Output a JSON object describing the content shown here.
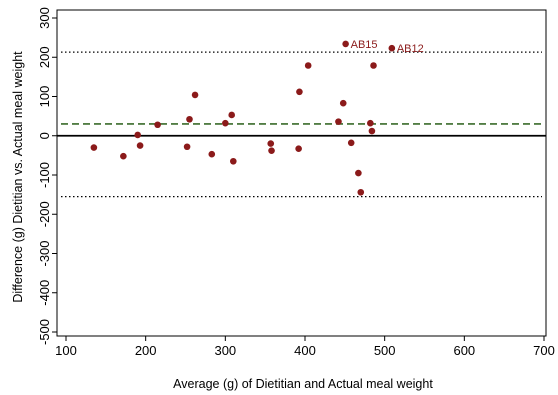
{
  "chart_data": {
    "type": "scatter",
    "title": "",
    "xlabel": "Average (g) of Dietitian and Actual meal weight",
    "ylabel": "Difference (g) Dietitian vs. Actual meal weight",
    "xlim": [
      100,
      700
    ],
    "ylim": [
      -500,
      300
    ],
    "xticks": [
      100,
      200,
      300,
      400,
      500,
      600,
      700
    ],
    "yticks": [
      -500,
      -400,
      -300,
      -200,
      -100,
      0,
      100,
      200,
      300
    ],
    "grid": false,
    "point_color": "#8b1a1a",
    "series": [
      {
        "points": [
          {
            "x": 135,
            "y": -30
          },
          {
            "x": 172,
            "y": -52
          },
          {
            "x": 190,
            "y": 2
          },
          {
            "x": 193,
            "y": -25
          },
          {
            "x": 215,
            "y": 28
          },
          {
            "x": 252,
            "y": -28
          },
          {
            "x": 255,
            "y": 42
          },
          {
            "x": 262,
            "y": 104
          },
          {
            "x": 283,
            "y": -47
          },
          {
            "x": 300,
            "y": 32
          },
          {
            "x": 308,
            "y": 53
          },
          {
            "x": 310,
            "y": -65
          },
          {
            "x": 357,
            "y": -20
          },
          {
            "x": 358,
            "y": -38
          },
          {
            "x": 392,
            "y": -33
          },
          {
            "x": 393,
            "y": 112
          },
          {
            "x": 404,
            "y": 179
          },
          {
            "x": 442,
            "y": 36
          },
          {
            "x": 448,
            "y": 83
          },
          {
            "x": 451,
            "y": 234
          },
          {
            "x": 458,
            "y": -18
          },
          {
            "x": 467,
            "y": -95
          },
          {
            "x": 470,
            "y": -144
          },
          {
            "x": 482,
            "y": 32
          },
          {
            "x": 484,
            "y": 12
          },
          {
            "x": 486,
            "y": 179
          },
          {
            "x": 509,
            "y": 223
          }
        ]
      }
    ],
    "reference_lines": [
      {
        "y": 0,
        "style": "solid",
        "color": "#000000"
      },
      {
        "y": 30,
        "style": "dashed",
        "color": "#3a6b2a"
      },
      {
        "y": 213,
        "style": "dotted",
        "color": "#000000"
      },
      {
        "y": -155,
        "style": "dotted",
        "color": "#000000"
      }
    ],
    "annotations": [
      {
        "text": "AB15",
        "x": 451,
        "y": 234
      },
      {
        "text": "AB12",
        "x": 509,
        "y": 223
      }
    ]
  }
}
